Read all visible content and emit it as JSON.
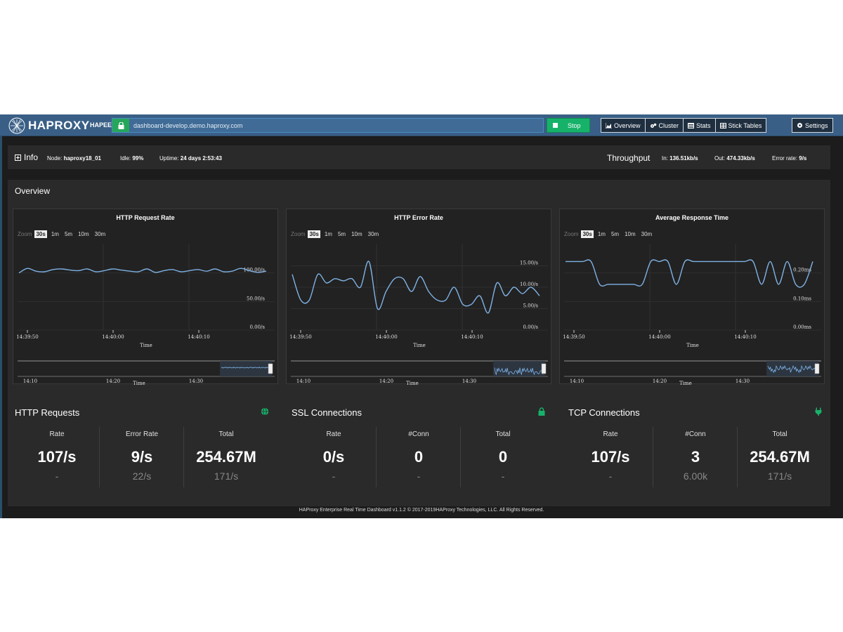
{
  "navbar": {
    "brand": "HAPROXY",
    "hapee_label": "HAPEE:",
    "url": "dashboard-develop.demo.haproxy.com",
    "stop_label": "Stop",
    "nav_items": [
      {
        "label": "Overview",
        "icon": "area-chart-icon"
      },
      {
        "label": "Cluster",
        "icon": "cogs-icon"
      },
      {
        "label": "Stats",
        "icon": "list-icon"
      },
      {
        "label": "Stick Tables",
        "icon": "table-icon"
      }
    ],
    "settings_label": "Settings"
  },
  "info": {
    "title": "Info",
    "node_label": "Node:",
    "node_value": "haproxy18_01",
    "idle_label": "Idle:",
    "idle_value": "99%",
    "uptime_label": "Uptime:",
    "uptime_value": "24 days 2:53:43",
    "throughput_title": "Throughput",
    "in_label": "In:",
    "in_value": "136.51kb/s",
    "out_label": "Out:",
    "out_value": "474.33kb/s",
    "error_label": "Error rate:",
    "error_value": "9/s"
  },
  "overview": {
    "title": "Overview",
    "zoom_label": "Zoom",
    "zoom_options": [
      "30s",
      "1m",
      "5m",
      "10m",
      "30m"
    ],
    "zoom_selected": "30s",
    "x_axis_title": "Time",
    "x_ticks": [
      "14:39:50",
      "14:40:00",
      "14:40:10"
    ],
    "nav_ticks": [
      "14:10",
      "14:20",
      "14:30"
    ]
  },
  "chart_data": [
    {
      "type": "line",
      "title": "HTTP Request Rate",
      "xlabel": "Time",
      "y_ticks": [
        "100.00/s",
        "50.00/s",
        "0.00/s"
      ],
      "y_tick_values": [
        100,
        50,
        0
      ],
      "ylim": [
        0,
        150
      ],
      "x": [
        0,
        1,
        2,
        3,
        4,
        5,
        6,
        7,
        8,
        9,
        10,
        11,
        12,
        13,
        14,
        15,
        16,
        17,
        18,
        19,
        20,
        21,
        22,
        23,
        24,
        25,
        26,
        27,
        28,
        29
      ],
      "series": [
        {
          "values": [
            100,
            108,
            103,
            102,
            106,
            107,
            105,
            104,
            107,
            102,
            104,
            107,
            105,
            103,
            102,
            107,
            101,
            104,
            106,
            102,
            104,
            106,
            103,
            107,
            102,
            103,
            108,
            104,
            101,
            103
          ]
        }
      ]
    },
    {
      "type": "line",
      "title": "HTTP Error Rate",
      "xlabel": "Time",
      "y_ticks": [
        "15.00/s",
        "10.00/s",
        "5.00/s",
        "0.00/s"
      ],
      "y_tick_values": [
        15,
        10,
        5,
        0
      ],
      "ylim": [
        0,
        20
      ],
      "x": [
        0,
        1,
        2,
        3,
        4,
        5,
        6,
        7,
        8,
        9,
        10,
        11,
        12,
        13,
        14,
        15,
        16,
        17,
        18,
        19,
        20,
        21,
        22,
        23,
        24,
        25,
        26,
        27,
        28,
        29
      ],
      "series": [
        {
          "values": [
            13,
            7,
            7,
            13,
            11,
            12,
            11.5,
            12,
            10,
            16,
            5,
            9,
            12,
            12,
            9,
            12.5,
            9,
            7,
            7,
            10,
            6,
            6,
            8,
            4,
            11,
            8,
            10,
            8.5,
            10,
            8
          ]
        }
      ]
    },
    {
      "type": "line",
      "title": "Average Response Time",
      "xlabel": "Time",
      "y_ticks": [
        "0.20ms",
        "0.10ms",
        "0.00ms"
      ],
      "y_tick_values": [
        0.2,
        0.1,
        0
      ],
      "ylim": [
        0,
        0.3
      ],
      "x": [
        0,
        1,
        2,
        3,
        4,
        5,
        6,
        7,
        8,
        9,
        10,
        11,
        12,
        13,
        14,
        15,
        16,
        17,
        18,
        19,
        20,
        21,
        22,
        23,
        24,
        25,
        26,
        27,
        28,
        29
      ],
      "series": [
        {
          "values": [
            0.24,
            0.24,
            0.24,
            0.24,
            0.16,
            0.16,
            0.16,
            0.16,
            0.16,
            0.16,
            0.24,
            0.24,
            0.24,
            0.16,
            0.24,
            0.24,
            0.24,
            0.24,
            0.24,
            0.24,
            0.24,
            0.24,
            0.24,
            0.16,
            0.24,
            0.16,
            0.24,
            0.16,
            0.16,
            0.24
          ]
        }
      ]
    }
  ],
  "panels": [
    {
      "title": "HTTP Requests",
      "icon": "globe-icon",
      "cols": [
        {
          "label": "Rate",
          "value": "107/s",
          "sub": "-"
        },
        {
          "label": "Error Rate",
          "value": "9/s",
          "sub": "22/s"
        },
        {
          "label": "Total",
          "value": "254.67M",
          "sub": "171/s"
        }
      ]
    },
    {
      "title": "SSL Connections",
      "icon": "lock-icon",
      "cols": [
        {
          "label": "Rate",
          "value": "0/s",
          "sub": "-"
        },
        {
          "label": "#Conn",
          "value": "0",
          "sub": "-"
        },
        {
          "label": "Total",
          "value": "0",
          "sub": "-"
        }
      ]
    },
    {
      "title": "TCP Connections",
      "icon": "plug-icon",
      "cols": [
        {
          "label": "Rate",
          "value": "107/s",
          "sub": "-"
        },
        {
          "label": "#Conn",
          "value": "3",
          "sub": "6.00k"
        },
        {
          "label": "Total",
          "value": "254.67M",
          "sub": "171/s"
        }
      ]
    }
  ],
  "footer": "HAProxy Enterprise Real Time Dashboard v1.1.2 © 2017-2019HAProxy Technologies, LLC. All Rights Reserved.",
  "colors": {
    "navbar": "#3a5f86",
    "accent_green": "#17b26a",
    "line": "#7fb2e5",
    "panel": "#2a2a2a",
    "background": "#1c1c1c"
  }
}
